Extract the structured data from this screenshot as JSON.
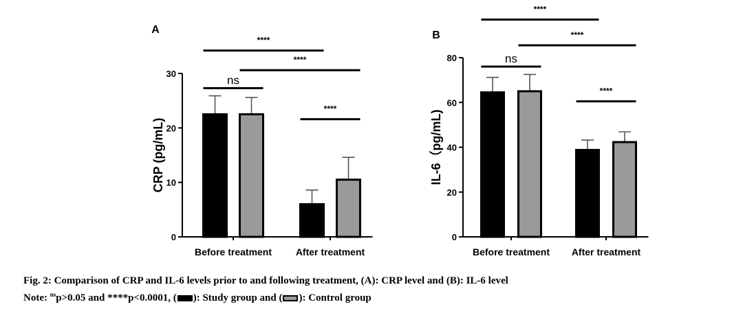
{
  "colors": {
    "study": "#000000",
    "control": "#9a9a9c"
  },
  "chart_data": [
    {
      "type": "bar",
      "panel": "A",
      "ylabel": "CRP (pg/mL)",
      "ylim": [
        0,
        30
      ],
      "yticks": [
        0,
        10,
        20,
        30
      ],
      "categories": [
        "Before treatment",
        "After treatment"
      ],
      "series": [
        {
          "values": [
            22.5,
            6.0
          ],
          "errors": [
            3.4,
            2.6
          ]
        },
        {
          "values": [
            22.5,
            10.5
          ],
          "errors": [
            3.1,
            4.1
          ]
        }
      ],
      "annotations": [
        {
          "text": "ns",
          "from": [
            0,
            0
          ],
          "to": [
            0,
            1
          ],
          "level": 27.3
        },
        {
          "text": "****",
          "from": [
            0,
            0
          ],
          "to": [
            1,
            0
          ],
          "level": 34.2
        },
        {
          "text": "****",
          "from": [
            0,
            1
          ],
          "to": [
            1,
            1
          ],
          "level": 30.6
        },
        {
          "text": "****",
          "from": [
            1,
            0
          ],
          "to": [
            1,
            1
          ],
          "level": 21.6
        }
      ]
    },
    {
      "type": "bar",
      "panel": "B",
      "ylabel": "IL-6（pg/mL)",
      "ylim": [
        0,
        80
      ],
      "yticks": [
        0,
        20,
        40,
        60,
        80
      ],
      "categories": [
        "Before treatment",
        "After treatment"
      ],
      "series": [
        {
          "values": [
            64.5,
            38.8
          ],
          "errors": [
            6.7,
            4.4
          ]
        },
        {
          "values": [
            65.0,
            42.3
          ],
          "errors": [
            7.5,
            4.6
          ]
        }
      ],
      "annotations": [
        {
          "text": "ns",
          "from": [
            0,
            0
          ],
          "to": [
            0,
            1
          ],
          "level": 76.0
        },
        {
          "text": "****",
          "from": [
            0,
            0
          ],
          "to": [
            1,
            0
          ],
          "level": 97.0
        },
        {
          "text": "****",
          "from": [
            0,
            1
          ],
          "to": [
            1,
            1
          ],
          "level": 85.5
        },
        {
          "text": "****",
          "from": [
            1,
            0
          ],
          "to": [
            1,
            1
          ],
          "level": 60.5
        }
      ]
    }
  ],
  "caption": {
    "line1": "Fig. 2: Comparison of CRP and IL-6 levels prior to and following treatment, (A): CRP level and (B): IL-6 level",
    "note_prefix": "Note: ",
    "ns_sup": "ns",
    "note_middle": "p>0.05 and ****p<0.0001, (",
    "study_text": "): Study group and (",
    "control_text": "): Control group"
  }
}
